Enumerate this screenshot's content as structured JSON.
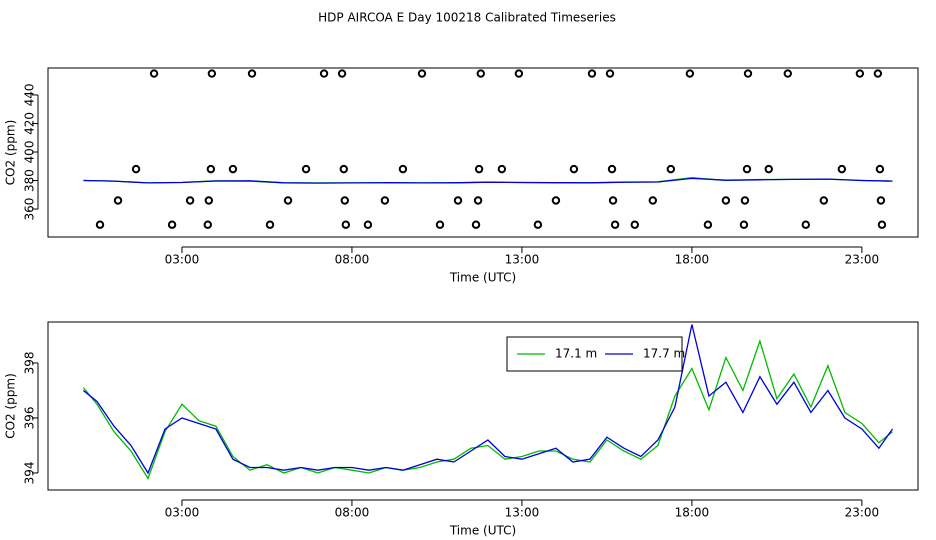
{
  "chart_data": [
    {
      "type": "line",
      "title": "HDP AIRCOA E  Day 100218  Calibrated Timeseries",
      "xlabel": "Time (UTC)",
      "ylabel": "CO2 (ppm)",
      "xlim": [
        -0.94,
        24.65
      ],
      "ylim": [
        340.4,
        458.9
      ],
      "xticks": [
        {
          "value": 3,
          "label": "03:00"
        },
        {
          "value": 8,
          "label": "08:00"
        },
        {
          "value": 13,
          "label": "13:00"
        },
        {
          "value": 18,
          "label": "18:00"
        },
        {
          "value": 23,
          "label": "23:00"
        }
      ],
      "yticks": [
        360,
        380,
        400,
        420,
        440
      ],
      "x": [
        0.1,
        1,
        2,
        3,
        4,
        5,
        6,
        7,
        8,
        9,
        10,
        11,
        12,
        13,
        14,
        15,
        16,
        17,
        18,
        19,
        20,
        21,
        22,
        23,
        23.9
      ],
      "series": [
        {
          "color": "#00bb00",
          "values": [
            380.0,
            379.6,
            378.3,
            378.7,
            379.8,
            379.6,
            378.4,
            378.3,
            378.3,
            378.5,
            378.3,
            378.4,
            378.8,
            378.6,
            378.5,
            378.4,
            378.8,
            379.1,
            382.0,
            380.0,
            380.7,
            380.8,
            381.0,
            380.0,
            379.6
          ]
        },
        {
          "color": "#0000dd",
          "values": [
            380.0,
            379.6,
            378.3,
            378.6,
            379.7,
            379.8,
            378.4,
            378.2,
            378.3,
            378.5,
            378.3,
            378.4,
            378.8,
            378.6,
            378.5,
            378.4,
            378.8,
            379.0,
            381.5,
            380.2,
            380.5,
            380.8,
            381.0,
            380.0,
            379.6
          ]
        }
      ],
      "points": {
        "marker": "circle",
        "color": "#000000",
        "x": [
          2.18,
          3.88,
          5.06,
          7.18,
          7.71,
          10.06,
          11.79,
          12.91,
          15.06,
          15.59,
          17.94,
          19.65,
          20.82,
          22.94,
          23.47,
          1.65,
          3.85,
          4.5,
          6.65,
          7.76,
          9.5,
          11.74,
          12.41,
          14.53,
          15.65,
          17.38,
          19.62,
          20.26,
          22.41,
          23.53,
          1.12,
          3.24,
          3.79,
          6.12,
          7.79,
          8.97,
          11.12,
          11.71,
          14,
          15.68,
          16.85,
          19,
          19.56,
          21.88,
          23.56,
          0.59,
          2.71,
          3.76,
          5.59,
          7.82,
          8.47,
          10.59,
          11.65,
          13.47,
          15.74,
          16.32,
          18.47,
          19.53,
          21.35,
          23.59
        ],
        "values": [
          455,
          455,
          455,
          455,
          455,
          455,
          455,
          455,
          455,
          455,
          455,
          455,
          455,
          455,
          455,
          388,
          388,
          388,
          388,
          388,
          388,
          388,
          388,
          388,
          388,
          388,
          388,
          388,
          388,
          388,
          366,
          366,
          366,
          366,
          366,
          366,
          366,
          366,
          366,
          366,
          366,
          366,
          366,
          366,
          366,
          349,
          349,
          349,
          349,
          349,
          349,
          349,
          349,
          349,
          349,
          349,
          349,
          349,
          349,
          349
        ]
      }
    },
    {
      "type": "line",
      "xlabel": "Time (UTC)",
      "ylabel": "CO2 (ppm)",
      "xlim": [
        -0.94,
        24.65
      ],
      "ylim": [
        393.38,
        399.49
      ],
      "xticks": [
        {
          "value": 3,
          "label": "03:00"
        },
        {
          "value": 8,
          "label": "08:00"
        },
        {
          "value": 13,
          "label": "13:00"
        },
        {
          "value": 18,
          "label": "18:00"
        },
        {
          "value": 23,
          "label": "23:00"
        }
      ],
      "yticks": [
        394,
        396,
        398
      ],
      "legend": "top",
      "x": [
        0.1,
        0.5,
        1,
        1.5,
        2,
        2.5,
        3,
        3.5,
        4,
        4.5,
        5,
        5.5,
        6,
        6.5,
        7,
        7.5,
        8,
        8.5,
        9,
        9.5,
        10,
        10.5,
        11,
        11.5,
        12,
        12.5,
        13,
        13.5,
        14,
        14.5,
        15,
        15.5,
        16,
        16.5,
        17,
        17.5,
        18,
        18.5,
        19,
        19.5,
        20,
        20.5,
        21,
        21.5,
        22,
        22.5,
        23,
        23.5,
        23.9
      ],
      "series": [
        {
          "name": "17.1 m",
          "color": "#00bb00",
          "values": [
            397.1,
            396.5,
            395.5,
            394.8,
            393.8,
            395.5,
            396.5,
            395.9,
            395.7,
            394.6,
            394.1,
            394.3,
            394.0,
            394.2,
            394.0,
            394.2,
            394.1,
            394.0,
            394.2,
            394.1,
            394.2,
            394.4,
            394.5,
            394.9,
            395.0,
            394.5,
            394.6,
            394.8,
            394.8,
            394.5,
            394.4,
            395.2,
            394.8,
            394.5,
            395.0,
            396.8,
            397.8,
            396.3,
            398.2,
            397.0,
            398.8,
            396.7,
            397.6,
            396.4,
            397.9,
            396.2,
            395.8,
            395.1,
            395.5
          ]
        },
        {
          "name": "17.7 m",
          "color": "#0000dd",
          "values": [
            397.0,
            396.6,
            395.7,
            395.0,
            394.0,
            395.6,
            396.0,
            395.8,
            395.6,
            394.5,
            394.2,
            394.2,
            394.1,
            394.2,
            394.1,
            394.2,
            394.2,
            394.1,
            394.2,
            394.1,
            394.3,
            394.5,
            394.4,
            394.8,
            395.2,
            394.6,
            394.5,
            394.7,
            394.9,
            394.4,
            394.5,
            395.3,
            394.9,
            394.6,
            395.2,
            396.4,
            399.4,
            396.8,
            397.3,
            396.2,
            397.5,
            396.5,
            397.3,
            396.2,
            397.0,
            396.0,
            395.6,
            394.9,
            395.6
          ]
        }
      ]
    }
  ]
}
